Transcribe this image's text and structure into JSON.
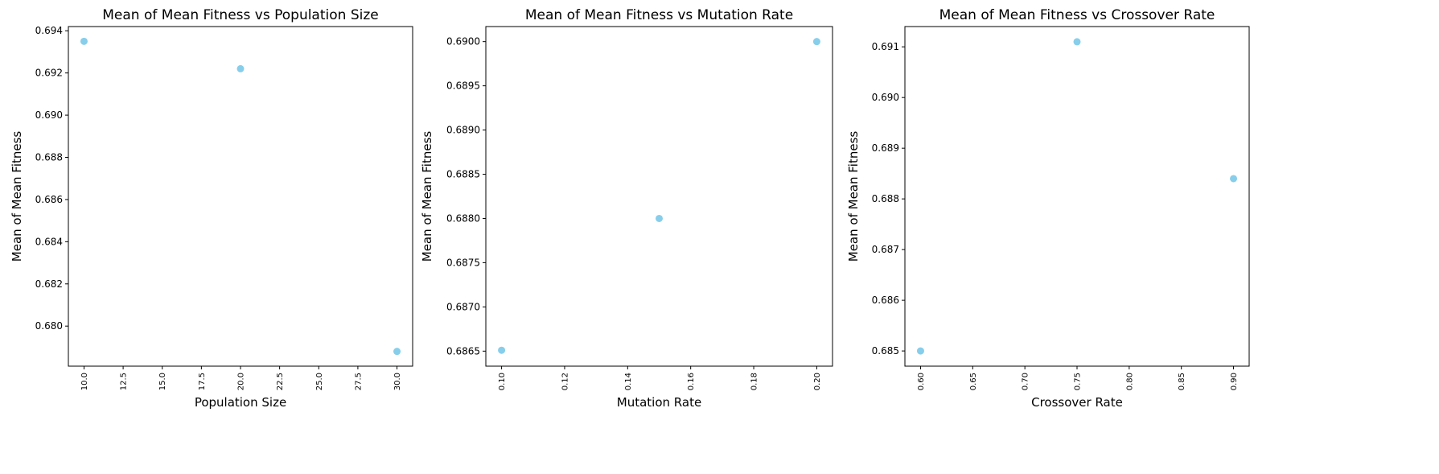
{
  "colors": {
    "point": "#87ceeb",
    "axis": "#000000",
    "background": "#ffffff"
  },
  "chart_data": [
    {
      "type": "scatter",
      "title": "Mean of Mean Fitness vs Population Size",
      "xlabel": "Population Size",
      "ylabel": "Mean of Mean Fitness",
      "x": [
        10,
        20,
        30
      ],
      "y": [
        0.6935,
        0.6922,
        0.6788
      ],
      "xlim": [
        9.0,
        31.0
      ],
      "ylim": [
        0.6781,
        0.6942
      ],
      "xticks": [
        10,
        12.5,
        15,
        17.5,
        20,
        22.5,
        25,
        27.5,
        30
      ],
      "xtick_labels": [
        "10.0",
        "12.5",
        "15.0",
        "17.5",
        "20.0",
        "22.5",
        "25.0",
        "27.5",
        "30.0"
      ],
      "yticks": [
        0.68,
        0.682,
        0.684,
        0.686,
        0.688,
        0.69,
        0.692,
        0.694
      ],
      "ytick_labels": [
        "0.680",
        "0.682",
        "0.684",
        "0.686",
        "0.688",
        "0.690",
        "0.692",
        "0.694"
      ],
      "grid": false
    },
    {
      "type": "scatter",
      "title": "Mean of Mean Fitness vs Mutation Rate",
      "xlabel": "Mutation Rate",
      "ylabel": "Mean of Mean Fitness",
      "x": [
        0.1,
        0.15,
        0.2
      ],
      "y": [
        0.68651,
        0.688,
        0.69
      ],
      "xlim": [
        0.095,
        0.205
      ],
      "ylim": [
        0.68633,
        0.69017
      ],
      "xticks": [
        0.1,
        0.12,
        0.14,
        0.16,
        0.18,
        0.2
      ],
      "xtick_labels": [
        "0.10",
        "0.12",
        "0.14",
        "0.16",
        "0.18",
        "0.20"
      ],
      "yticks": [
        0.6865,
        0.687,
        0.6875,
        0.688,
        0.6885,
        0.689,
        0.6895,
        0.69
      ],
      "ytick_labels": [
        "0.6865",
        "0.6870",
        "0.6875",
        "0.6880",
        "0.6885",
        "0.6890",
        "0.6895",
        "0.6900"
      ],
      "grid": false
    },
    {
      "type": "scatter",
      "title": "Mean of Mean Fitness vs Crossover Rate",
      "xlabel": "Crossover Rate",
      "ylabel": "Mean of Mean Fitness",
      "x": [
        0.6,
        0.75,
        0.9
      ],
      "y": [
        0.685,
        0.6911,
        0.6884
      ],
      "xlim": [
        0.585,
        0.915
      ],
      "ylim": [
        0.6847,
        0.6914
      ],
      "xticks": [
        0.6,
        0.65,
        0.7,
        0.75,
        0.8,
        0.85,
        0.9
      ],
      "xtick_labels": [
        "0.60",
        "0.65",
        "0.70",
        "0.75",
        "0.80",
        "0.85",
        "0.90"
      ],
      "yticks": [
        0.685,
        0.686,
        0.687,
        0.688,
        0.689,
        0.69,
        0.691
      ],
      "ytick_labels": [
        "0.685",
        "0.686",
        "0.687",
        "0.688",
        "0.689",
        "0.690",
        "0.691"
      ],
      "grid": false
    }
  ]
}
